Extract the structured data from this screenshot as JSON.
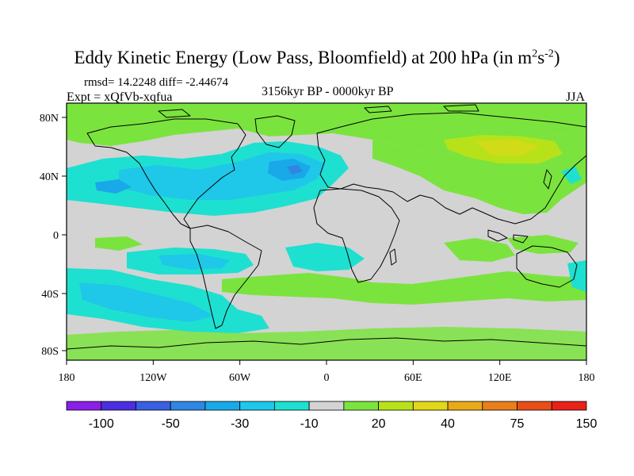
{
  "title": {
    "main": "Eddy Kinetic Energy (Low Pass, Bloomfield) at 200 hPa (in m",
    "sup1": "2",
    "mid": "s",
    "sup2": "-2",
    "end": ")"
  },
  "stats": {
    "rmsd_text": "rmsd= 14.2248 diff= -2.44674"
  },
  "experiment": {
    "label": "Expt = xQfVb-xqfua"
  },
  "period": "3156kyr BP - 0000kyr BP",
  "season": "JJA",
  "map": {
    "lon_ticks": [
      {
        "label": "180"
      },
      {
        "label": "120W"
      },
      {
        "label": "60W"
      },
      {
        "label": "0"
      },
      {
        "label": "60E"
      },
      {
        "label": "120E"
      },
      {
        "label": "180"
      }
    ],
    "lat_ticks": [
      {
        "label": "80N"
      },
      {
        "label": "40N"
      },
      {
        "label": "0"
      },
      {
        "label": "40S"
      },
      {
        "label": "80S"
      }
    ],
    "background_color": "#d3d3d3"
  },
  "colorbar": {
    "colors": [
      "#8a1fe8",
      "#4a2ee0",
      "#3a5fe0",
      "#2f86e3",
      "#19a8e8",
      "#1fc7e8",
      "#1ee0d0",
      "#d3d3d3",
      "#7be33e",
      "#b7e21a",
      "#e2d718",
      "#e8aa18",
      "#e87f1a",
      "#e84e18",
      "#e82218"
    ],
    "labels": [
      {
        "text": "-100",
        "index": 2
      },
      {
        "text": "-50",
        "index": 4
      },
      {
        "text": "-30",
        "index": 6
      },
      {
        "text": "-10",
        "index": 8
      },
      {
        "text": "20",
        "index": 10
      },
      {
        "text": "40",
        "index": 12
      },
      {
        "text": "75",
        "index": 14
      },
      {
        "text": "150",
        "index": 16
      }
    ]
  }
}
